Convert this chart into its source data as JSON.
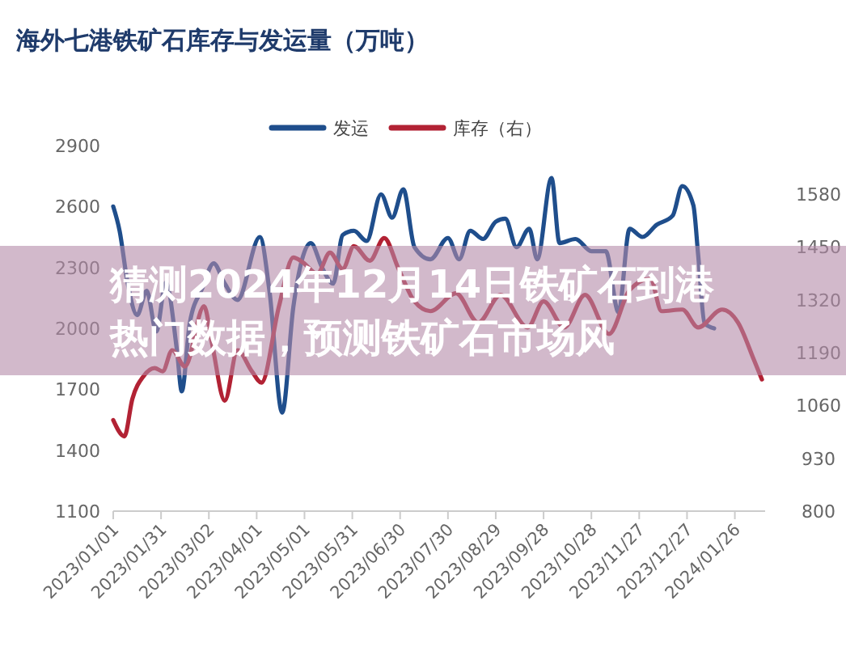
{
  "chart_data": {
    "type": "line",
    "title": "海外七港铁矿石库存与发运量（万吨）",
    "annotations": [
      "猜测2024年12月14日铁矿石到港热门数据，预测铁矿石市场风"
    ],
    "legend": "top",
    "grid": false,
    "marker": "none",
    "line_style": "solid",
    "xlim": [
      "2023-01-01",
      "2024-02-14"
    ],
    "xticks": [
      {
        "value": "2023-01-01",
        "label": "2023/01/01"
      },
      {
        "value": "2023-01-31",
        "label": "2023/01/31"
      },
      {
        "value": "2023-03-02",
        "label": "2023/03/02"
      },
      {
        "value": "2023-04-01",
        "label": "2023/04/01"
      },
      {
        "value": "2023-05-01",
        "label": "2023/05/01"
      },
      {
        "value": "2023-05-31",
        "label": "2023/05/31"
      },
      {
        "value": "2023-06-30",
        "label": "2023/06/30"
      },
      {
        "value": "2023-07-30",
        "label": "2023/07/30"
      },
      {
        "value": "2023-08-29",
        "label": "2023/08/29"
      },
      {
        "value": "2023-09-28",
        "label": "2023/09/28"
      },
      {
        "value": "2023-10-28",
        "label": "2023/10/28"
      },
      {
        "value": "2023-11-27",
        "label": "2023/11/27"
      },
      {
        "value": "2023-12-27",
        "label": "2023/12/27"
      },
      {
        "value": "2024-01-26",
        "label": "2024/01/26"
      }
    ],
    "ylim": [
      1100,
      2900
    ],
    "yticks": [
      1100,
      1400,
      1700,
      2000,
      2300,
      2600,
      2900
    ],
    "y2lim": [
      800,
      1580
    ],
    "y2ticks": [
      800,
      930,
      1060,
      1190,
      1320,
      1450,
      1580
    ],
    "series": [
      {
        "name": "发运",
        "color": "#1f4e8c",
        "axis": "y",
        "x": [
          "2023-01-01",
          "2023-01-05",
          "2023-01-10",
          "2023-01-16",
          "2023-01-22",
          "2023-01-28",
          "2023-02-03",
          "2023-02-10",
          "2023-02-13",
          "2023-02-18",
          "2023-02-26",
          "2023-03-05",
          "2023-03-12",
          "2023-03-20",
          "2023-04-03",
          "2023-04-09",
          "2023-04-17",
          "2023-04-24",
          "2023-05-05",
          "2023-05-12",
          "2023-05-19",
          "2023-05-25",
          "2023-06-01",
          "2023-06-09",
          "2023-06-18",
          "2023-06-25",
          "2023-07-02",
          "2023-07-09",
          "2023-07-19",
          "2023-07-30",
          "2023-08-06",
          "2023-08-13",
          "2023-08-21",
          "2023-08-29",
          "2023-09-04",
          "2023-09-11",
          "2023-09-19",
          "2023-09-24",
          "2023-10-03",
          "2023-10-08",
          "2023-10-18",
          "2023-10-28",
          "2023-11-06",
          "2023-11-14",
          "2023-11-21",
          "2023-11-29",
          "2023-12-08",
          "2023-12-18",
          "2023-12-24",
          "2023-12-31",
          "2024-01-03",
          "2024-01-07",
          "2024-01-13"
        ],
        "values": [
          2600,
          2480,
          2225,
          2065,
          2185,
          1985,
          2225,
          1890,
          1690,
          2025,
          2200,
          2320,
          2220,
          2140,
          2450,
          2185,
          1585,
          2105,
          2420,
          2300,
          2220,
          2460,
          2480,
          2430,
          2660,
          2545,
          2685,
          2400,
          2340,
          2445,
          2340,
          2480,
          2440,
          2525,
          2540,
          2400,
          2490,
          2340,
          2740,
          2420,
          2440,
          2380,
          2380,
          2080,
          2490,
          2450,
          2510,
          2555,
          2700,
          2605,
          2360,
          2025,
          2000
        ]
      },
      {
        "name": "库存（右）",
        "color": "#b22234",
        "axis": "y2",
        "x": [
          "2023-01-01",
          "2023-01-08",
          "2023-01-13",
          "2023-01-20",
          "2023-01-27",
          "2023-02-01",
          "2023-02-07",
          "2023-02-15",
          "2023-02-27",
          "2023-03-04",
          "2023-03-12",
          "2023-03-20",
          "2023-03-29",
          "2023-04-04",
          "2023-04-15",
          "2023-04-24",
          "2023-04-30",
          "2023-05-09",
          "2023-05-17",
          "2023-05-25",
          "2023-06-01",
          "2023-06-11",
          "2023-06-20",
          "2023-06-29",
          "2023-07-09",
          "2023-07-19",
          "2023-08-04",
          "2023-08-18",
          "2023-09-01",
          "2023-09-18",
          "2023-09-28",
          "2023-10-11",
          "2023-10-24",
          "2023-11-08",
          "2023-11-21",
          "2023-12-04",
          "2023-12-11",
          "2023-12-24",
          "2024-01-03",
          "2024-01-18",
          "2024-01-28",
          "2024-02-07",
          "2024-02-12"
        ],
        "values": [
          1024,
          984,
          1076,
          1132,
          1152,
          1144,
          1196,
          1156,
          1304,
          1212,
          1072,
          1196,
          1144,
          1116,
          1304,
          1424,
          1412,
          1384,
          1436,
          1396,
          1452,
          1416,
          1472,
          1396,
          1316,
          1292,
          1336,
          1264,
          1332,
          1252,
          1316,
          1252,
          1332,
          1236,
          1344,
          1372,
          1292,
          1296,
          1252,
          1296,
          1264,
          1172,
          1124
        ]
      }
    ]
  }
}
